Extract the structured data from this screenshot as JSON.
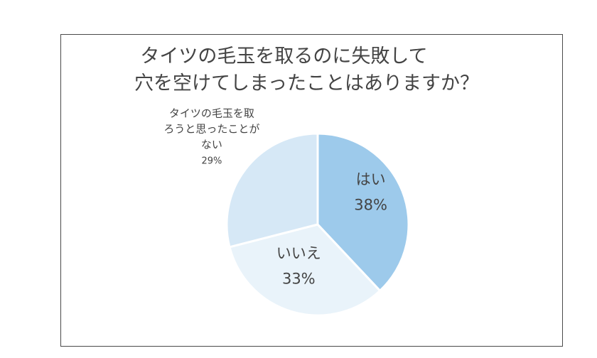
{
  "chart_data": {
    "type": "pie",
    "title": [
      "タイツの毛玉を取るのに失敗して",
      "穴を空けてしまったことはありますか？"
    ],
    "slices": [
      {
        "label": "はい",
        "value": 38,
        "value_label": "38%",
        "color": "#9dcaeb"
      },
      {
        "label": "いいえ",
        "value": 33,
        "value_label": "33%",
        "color": "#e9f3fa"
      },
      {
        "label": "タイツの毛玉を取ろうと思ったことがない",
        "label_lines": [
          "タイツの毛玉を取",
          "ろうと思ったことが",
          "ない"
        ],
        "value": 29,
        "value_label": "29%",
        "color": "#d6e8f6"
      }
    ],
    "start_angle_deg": 0,
    "direction": "clockwise",
    "legend": "none",
    "text_color": "#444444"
  }
}
